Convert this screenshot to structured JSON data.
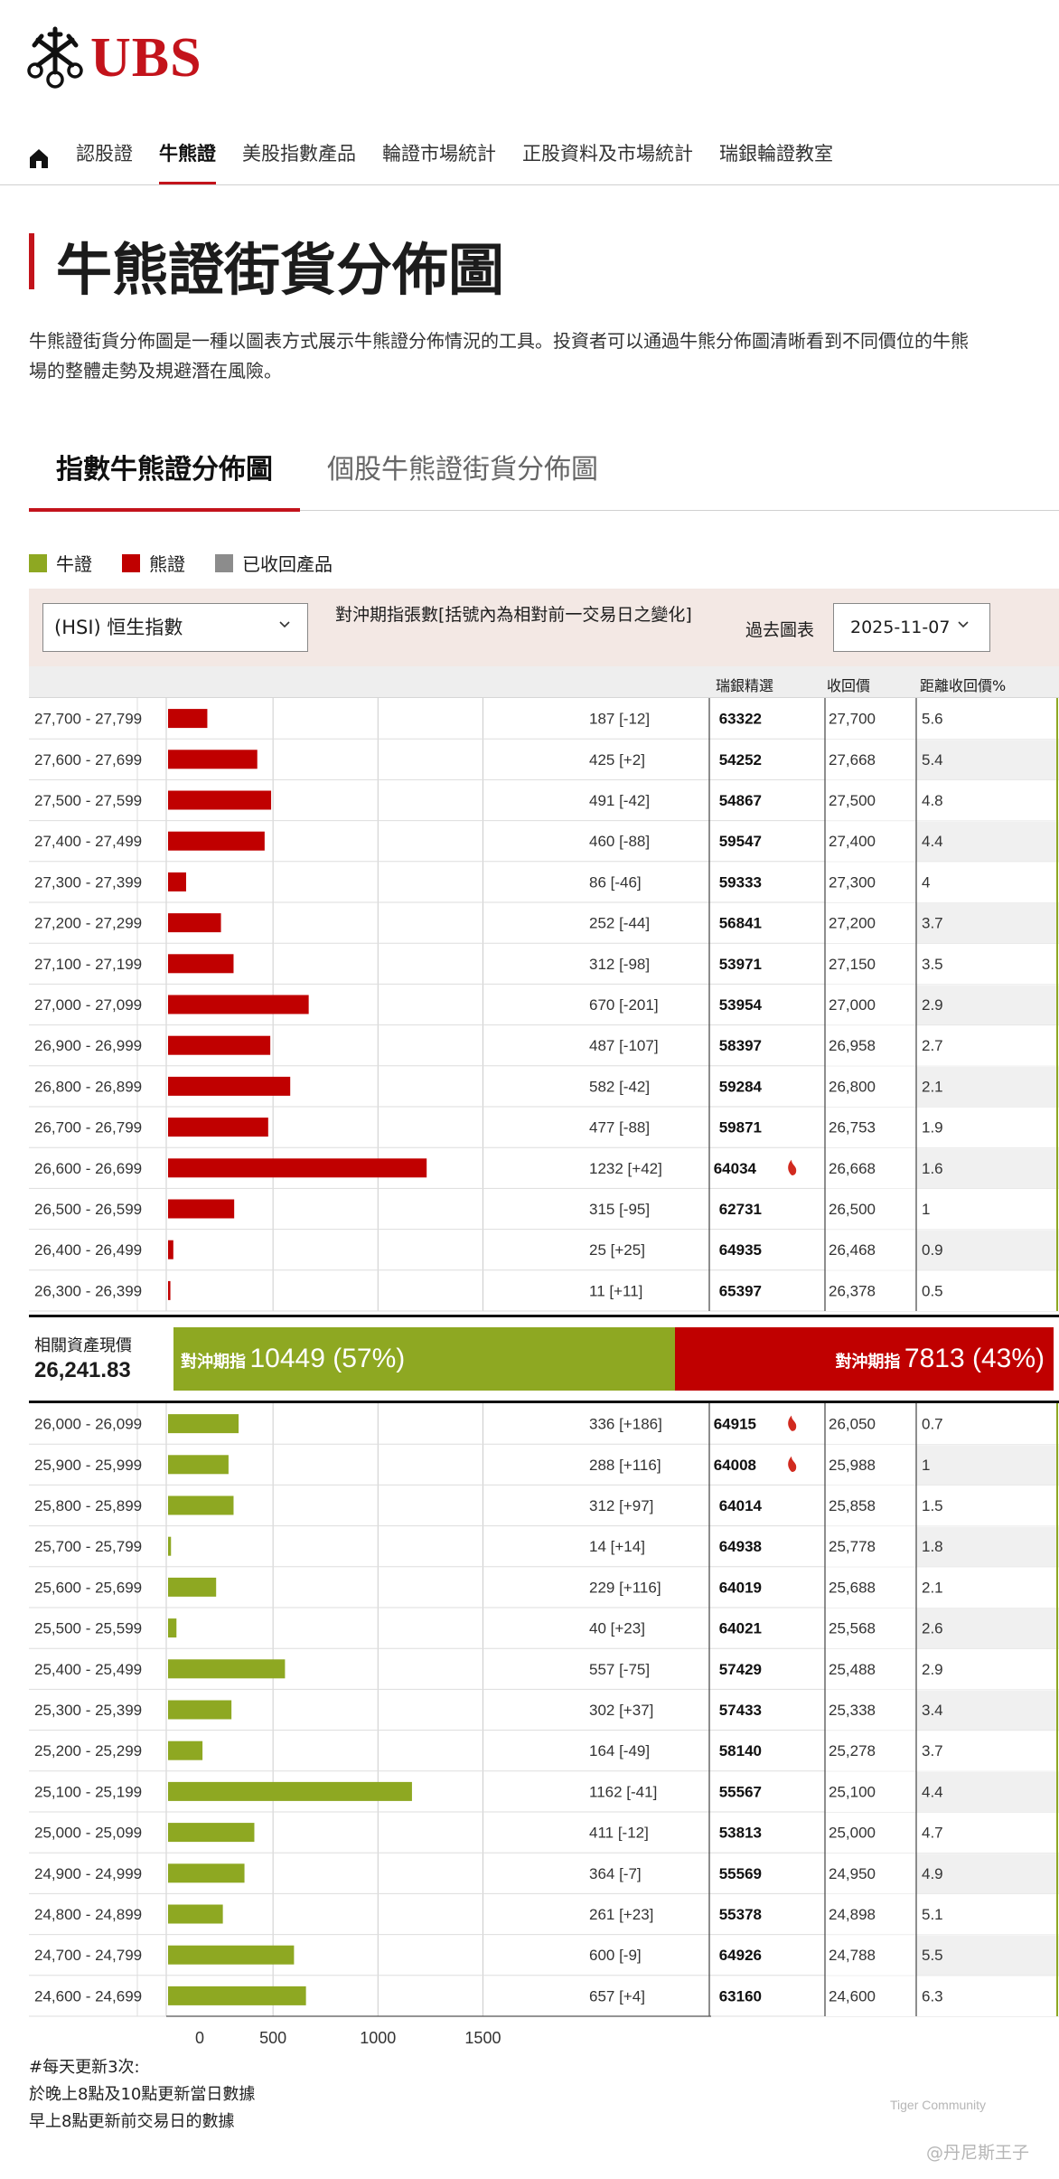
{
  "brand": {
    "name": "UBS"
  },
  "nav": {
    "items": [
      "認股證",
      "牛熊證",
      "美股指數產品",
      "輪證市場統計",
      "正股資料及市場統計",
      "瑞銀輪證教室"
    ],
    "active_index": 1
  },
  "page": {
    "title": "牛熊證街貨分佈圖",
    "description": "牛熊證街貨分佈圖是一種以圖表方式展示牛熊證分佈情況的工具。投資者可以通過牛熊分佈圖清晰看到不同價位的牛熊\n場的整體走勢及規避潛在風險。"
  },
  "tabs": [
    "指數牛熊證分佈圖",
    "個股牛熊證街貨分佈圖"
  ],
  "legend": [
    {
      "label": "牛證",
      "color": "#8ea822"
    },
    {
      "label": "熊證",
      "color": "#c00000"
    },
    {
      "label": "已收回產品",
      "color": "#8c8c8c"
    }
  ],
  "filters": {
    "underlying": "(HSI) 恒生指數",
    "label": "對沖期指張數[括號內為相對前一交易日之變化]",
    "past_chart_label": "過去圖表",
    "date": "2025-11-07"
  },
  "columns": {
    "code": "瑞銀精選",
    "call_price": "收回價",
    "distance": "距離收回價%"
  },
  "split": {
    "spot_label": "相關資產現價",
    "spot_value": "26,241.83",
    "prefix": "對沖期指",
    "bull_value": "10449 (57%)",
    "bear_value": "7813 (43%)",
    "bull_pct": 57,
    "bear_pct": 43
  },
  "chart_data": {
    "type": "bar",
    "orientation": "horizontal",
    "xlim": [
      0,
      1500
    ],
    "x_ticks": [
      0,
      500,
      1000,
      1500
    ],
    "bear_rows": [
      {
        "range": "27,700 - 27,799",
        "value": 187,
        "label": "187 [-12]",
        "code": "63322",
        "hot": false,
        "call": "27,700",
        "dist": "5.6"
      },
      {
        "range": "27,600 - 27,699",
        "value": 425,
        "label": "425 [+2]",
        "code": "54252",
        "hot": false,
        "call": "27,668",
        "dist": "5.4"
      },
      {
        "range": "27,500 - 27,599",
        "value": 491,
        "label": "491 [-42]",
        "code": "54867",
        "hot": false,
        "call": "27,500",
        "dist": "4.8"
      },
      {
        "range": "27,400 - 27,499",
        "value": 460,
        "label": "460 [-88]",
        "code": "59547",
        "hot": false,
        "call": "27,400",
        "dist": "4.4"
      },
      {
        "range": "27,300 - 27,399",
        "value": 86,
        "label": "86 [-46]",
        "code": "59333",
        "hot": false,
        "call": "27,300",
        "dist": "4"
      },
      {
        "range": "27,200 - 27,299",
        "value": 252,
        "label": "252 [-44]",
        "code": "56841",
        "hot": false,
        "call": "27,200",
        "dist": "3.7"
      },
      {
        "range": "27,100 - 27,199",
        "value": 312,
        "label": "312 [-98]",
        "code": "53971",
        "hot": false,
        "call": "27,150",
        "dist": "3.5"
      },
      {
        "range": "27,000 - 27,099",
        "value": 670,
        "label": "670 [-201]",
        "code": "53954",
        "hot": false,
        "call": "27,000",
        "dist": "2.9"
      },
      {
        "range": "26,900 - 26,999",
        "value": 487,
        "label": "487 [-107]",
        "code": "58397",
        "hot": false,
        "call": "26,958",
        "dist": "2.7"
      },
      {
        "range": "26,800 - 26,899",
        "value": 582,
        "label": "582 [-42]",
        "code": "59284",
        "hot": false,
        "call": "26,800",
        "dist": "2.1"
      },
      {
        "range": "26,700 - 26,799",
        "value": 477,
        "label": "477 [-88]",
        "code": "59871",
        "hot": false,
        "call": "26,753",
        "dist": "1.9"
      },
      {
        "range": "26,600 - 26,699",
        "value": 1232,
        "label": "1232 [+42]",
        "code": "64034",
        "hot": true,
        "call": "26,668",
        "dist": "1.6"
      },
      {
        "range": "26,500 - 26,599",
        "value": 315,
        "label": "315 [-95]",
        "code": "62731",
        "hot": false,
        "call": "26,500",
        "dist": "1"
      },
      {
        "range": "26,400 - 26,499",
        "value": 25,
        "label": "25 [+25]",
        "code": "64935",
        "hot": false,
        "call": "26,468",
        "dist": "0.9"
      },
      {
        "range": "26,300 - 26,399",
        "value": 11,
        "label": "11 [+11]",
        "code": "65397",
        "hot": false,
        "call": "26,378",
        "dist": "0.5"
      }
    ],
    "bull_rows": [
      {
        "range": "26,000 - 26,099",
        "value": 336,
        "label": "336 [+186]",
        "code": "64915",
        "hot": true,
        "call": "26,050",
        "dist": "0.7"
      },
      {
        "range": "25,900 - 25,999",
        "value": 288,
        "label": "288 [+116]",
        "code": "64008",
        "hot": true,
        "call": "25,988",
        "dist": "1"
      },
      {
        "range": "25,800 - 25,899",
        "value": 312,
        "label": "312 [+97]",
        "code": "64014",
        "hot": false,
        "call": "25,858",
        "dist": "1.5"
      },
      {
        "range": "25,700 - 25,799",
        "value": 14,
        "label": "14 [+14]",
        "code": "64938",
        "hot": false,
        "call": "25,778",
        "dist": "1.8"
      },
      {
        "range": "25,600 - 25,699",
        "value": 229,
        "label": "229 [+116]",
        "code": "64019",
        "hot": false,
        "call": "25,688",
        "dist": "2.1"
      },
      {
        "range": "25,500 - 25,599",
        "value": 40,
        "label": "40 [+23]",
        "code": "64021",
        "hot": false,
        "call": "25,568",
        "dist": "2.6"
      },
      {
        "range": "25,400 - 25,499",
        "value": 557,
        "label": "557 [-75]",
        "code": "57429",
        "hot": false,
        "call": "25,488",
        "dist": "2.9"
      },
      {
        "range": "25,300 - 25,399",
        "value": 302,
        "label": "302 [+37]",
        "code": "57433",
        "hot": false,
        "call": "25,338",
        "dist": "3.4"
      },
      {
        "range": "25,200 - 25,299",
        "value": 164,
        "label": "164 [-49]",
        "code": "58140",
        "hot": false,
        "call": "25,278",
        "dist": "3.7"
      },
      {
        "range": "25,100 - 25,199",
        "value": 1162,
        "label": "1162 [-41]",
        "code": "55567",
        "hot": false,
        "call": "25,100",
        "dist": "4.4"
      },
      {
        "range": "25,000 - 25,099",
        "value": 411,
        "label": "411 [-12]",
        "code": "53813",
        "hot": false,
        "call": "25,000",
        "dist": "4.7"
      },
      {
        "range": "24,900 - 24,999",
        "value": 364,
        "label": "364 [-7]",
        "code": "55569",
        "hot": false,
        "call": "24,950",
        "dist": "4.9"
      },
      {
        "range": "24,800 - 24,899",
        "value": 261,
        "label": "261 [+23]",
        "code": "55378",
        "hot": false,
        "call": "24,898",
        "dist": "5.1"
      },
      {
        "range": "24,700 - 24,799",
        "value": 600,
        "label": "600 [-9]",
        "code": "64926",
        "hot": false,
        "call": "24,788",
        "dist": "5.5"
      },
      {
        "range": "24,600 - 24,699",
        "value": 657,
        "label": "657 [+4]",
        "code": "63160",
        "hot": false,
        "call": "24,600",
        "dist": "6.3"
      }
    ]
  },
  "notes": [
    "#每天更新3次:",
    "於晚上8點及10點更新當日數據",
    "早上8點更新前交易日的數據"
  ],
  "watermark": {
    "line1": "Tiger Community",
    "line2": "@丹尼斯王子"
  }
}
